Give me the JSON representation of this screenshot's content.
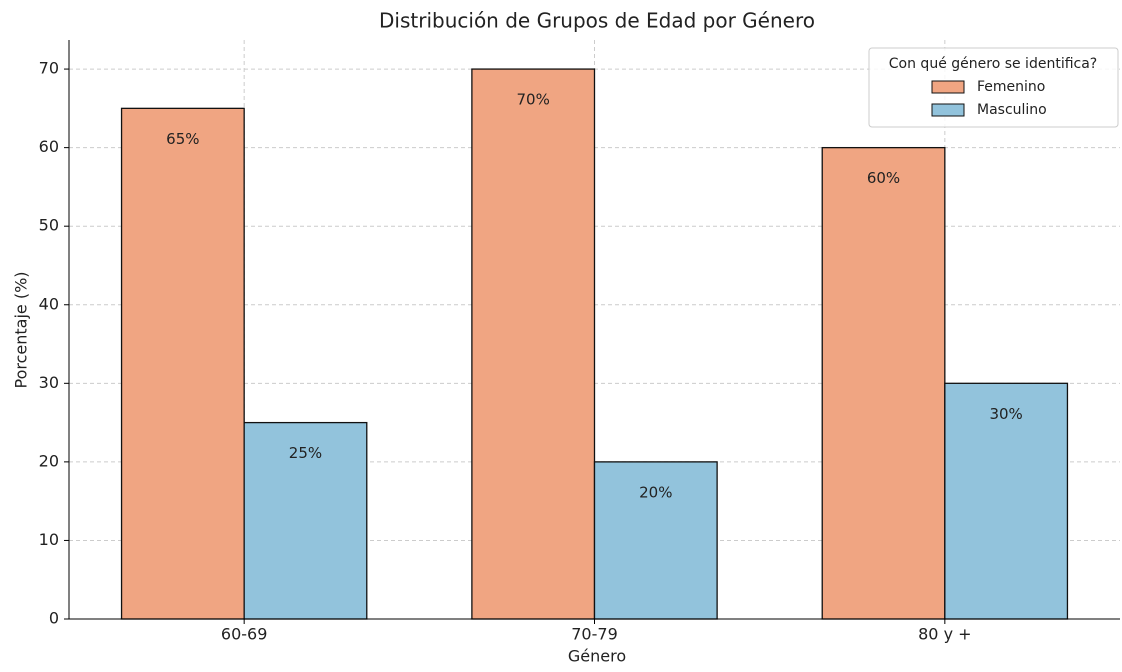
{
  "chart_data": {
    "type": "bar",
    "title": "Distribución de Grupos de Edad por Género",
    "xlabel": "Género",
    "ylabel": "Porcentaje (%)",
    "categories": [
      "60-69",
      "70-79",
      "80 y +"
    ],
    "series": [
      {
        "name": "Femenino",
        "color": "#f0a582",
        "values": [
          65,
          70,
          60
        ],
        "value_labels": [
          "65%",
          "70%",
          "60%"
        ]
      },
      {
        "name": "Masculino",
        "color": "#92c3dc",
        "values": [
          25,
          20,
          30
        ],
        "value_labels": [
          "25%",
          "20%",
          "30%"
        ]
      }
    ],
    "legend_title": "Con qué género se identifica?",
    "legend": "upper right",
    "ylim": [
      0,
      73.7
    ],
    "yticks": [
      0,
      10,
      20,
      30,
      40,
      50,
      60,
      70
    ],
    "grid": true
  }
}
